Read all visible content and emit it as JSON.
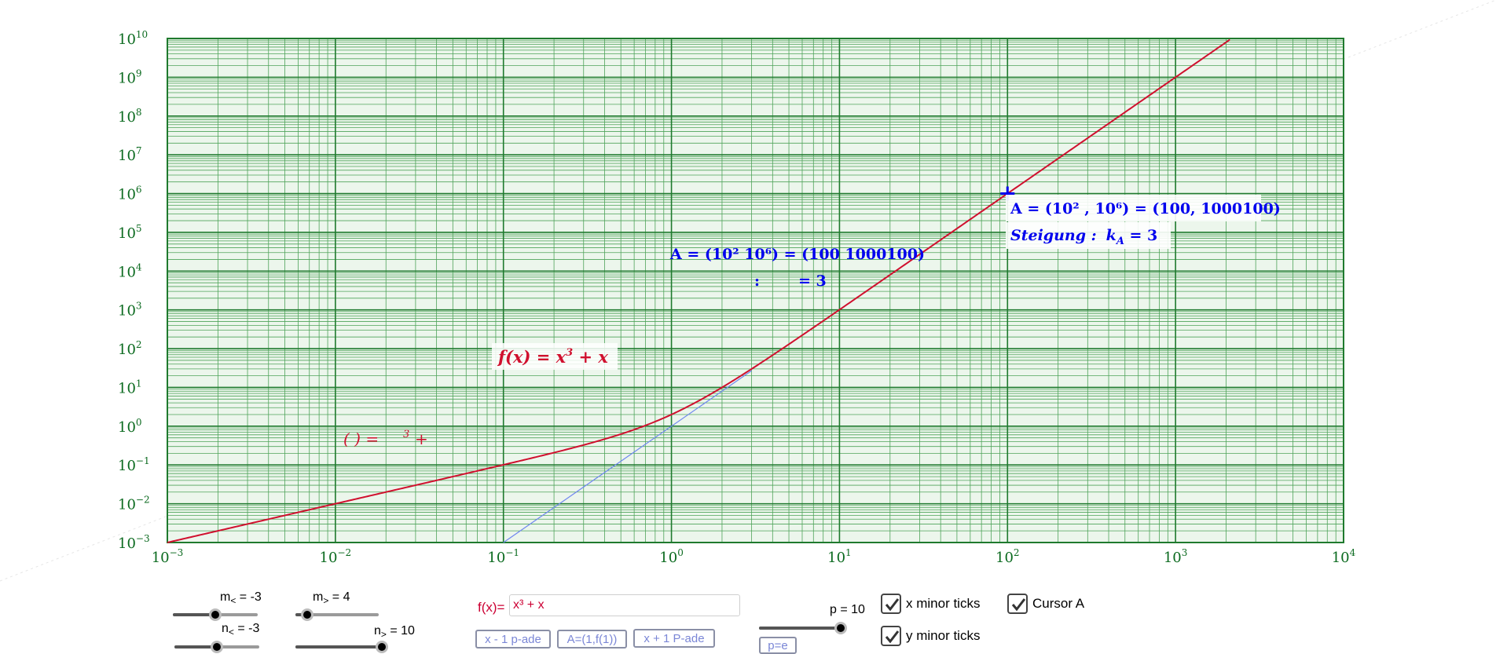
{
  "chart_data": {
    "type": "line",
    "xscale": "log",
    "yscale": "log",
    "xlim": [
      0.001,
      10000
    ],
    "ylim": [
      0.001,
      10000000000
    ],
    "grid": true,
    "x_tick_labels": [
      {
        "base": "10",
        "exp": "−3",
        "value": 0.001
      },
      {
        "base": "10",
        "exp": "−2",
        "value": 0.01
      },
      {
        "base": "10",
        "exp": "−1",
        "value": 0.1
      },
      {
        "base": "10",
        "exp": "0",
        "value": 1
      },
      {
        "base": "10",
        "exp": "1",
        "value": 10
      },
      {
        "base": "10",
        "exp": "2",
        "value": 100
      },
      {
        "base": "10",
        "exp": "3",
        "value": 1000
      },
      {
        "base": "10",
        "exp": "4",
        "value": 10000
      }
    ],
    "y_tick_labels": [
      {
        "base": "10",
        "exp": "−3",
        "value": 0.001
      },
      {
        "base": "10",
        "exp": "−2",
        "value": 0.01
      },
      {
        "base": "10",
        "exp": "−1",
        "value": 0.1
      },
      {
        "base": "10",
        "exp": "0",
        "value": 1
      },
      {
        "base": "10",
        "exp": "1",
        "value": 10
      },
      {
        "base": "10",
        "exp": "2",
        "value": 100
      },
      {
        "base": "10",
        "exp": "3",
        "value": 1000
      },
      {
        "base": "10",
        "exp": "4",
        "value": 10000
      },
      {
        "base": "10",
        "exp": "5",
        "value": 100000
      },
      {
        "base": "10",
        "exp": "6",
        "value": 1000000
      },
      {
        "base": "10",
        "exp": "7",
        "value": 10000000
      },
      {
        "base": "10",
        "exp": "8",
        "value": 100000000
      },
      {
        "base": "10",
        "exp": "9",
        "value": 1000000000
      },
      {
        "base": "10",
        "exp": "10",
        "value": 10000000000
      }
    ],
    "series": [
      {
        "function": "x^3 + x",
        "color": "#d0102e"
      },
      {
        "function": "tangent at A, slope 3",
        "color": "#6f86f0",
        "x_from": 0.1,
        "x_to": 3
      }
    ],
    "point_A": {
      "x": 100,
      "y": 1000100,
      "color": "#0000ee"
    },
    "labels": {
      "function_label": {
        "text_f": "f(x) = x",
        "text_sup": "3",
        "text_end": " + x"
      },
      "function_label_ghost": {
        "text_a": "( ) =",
        "text_sup": "3",
        "text_b": "+"
      },
      "point_label": {
        "text": "A = (10² , 10⁶) = (100, 1000100)"
      },
      "slope_label": {
        "word": "Steigung :",
        "var": "k",
        "sub": "A",
        "value": " = 3"
      },
      "point_label_ghost": {
        "text": "A = (10²  10⁶) = (100  1000100)"
      },
      "slope_label_ghost": {
        "text_a": ":",
        "text_b": "= 3"
      }
    }
  },
  "controls": {
    "sliders": [
      {
        "id": "m-less",
        "name": "m",
        "sub": "<",
        "text": " = -3",
        "value": -3,
        "min": -6,
        "max": 0
      },
      {
        "id": "m-greater",
        "name": "m",
        "sub": ">",
        "text": " = 4",
        "value": 4,
        "min": 3,
        "max": 10
      },
      {
        "id": "n-less",
        "name": "n",
        "sub": "<",
        "text": " = -3",
        "value": -3,
        "min": -6,
        "max": 0
      },
      {
        "id": "n-greater",
        "name": "n",
        "sub": ">",
        "text": " = 10",
        "value": 10,
        "min": 0,
        "max": 10
      },
      {
        "id": "p",
        "name": "p",
        "sub": "",
        "text": " = 10",
        "value": 10,
        "min": 2,
        "max": 10
      }
    ],
    "fx_label": "f(x)=",
    "fx_value": "x³ + x",
    "buttons": {
      "x_minus": "x - 1 p-ade",
      "set_A": "A=(1,f(1))",
      "x_plus": "x + 1 P-ade",
      "p_e": "p=e"
    },
    "checkboxes": [
      {
        "id": "x-minor-ticks",
        "label": "x minor ticks",
        "checked": true
      },
      {
        "id": "y-minor-ticks",
        "label": "y minor ticks",
        "checked": true
      },
      {
        "id": "cursor-a",
        "label": "Cursor A",
        "checked": true
      }
    ]
  },
  "colors": {
    "grid_major": "#1f7a2e",
    "grid_minor": "#4fa35a",
    "plot_bg": "#ecf6ec",
    "axis_text": "#0b6a1f",
    "curve": "#d0102e",
    "tangent": "#6f86f0",
    "point": "#0000ee"
  }
}
